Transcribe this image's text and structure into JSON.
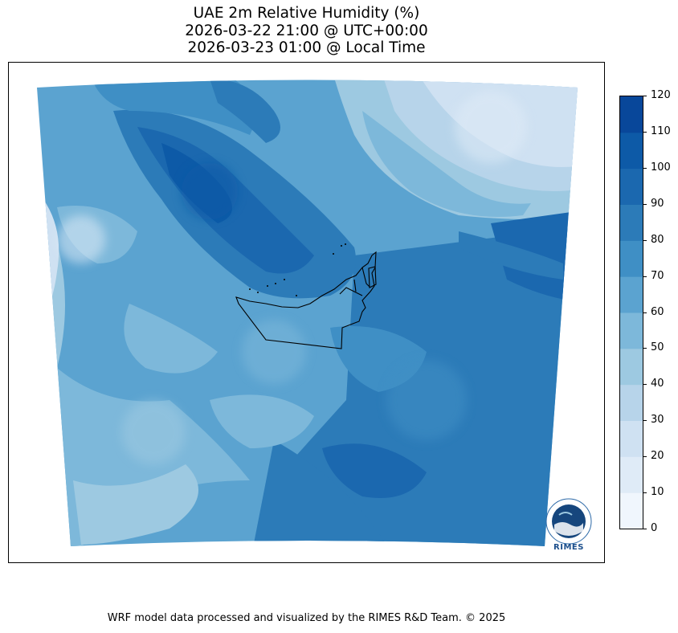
{
  "title": {
    "line1": "UAE 2m Relative Humidity (%)",
    "line2": "2026-03-22 21:00 @ UTC+00:00",
    "line3": "2026-03-23 01:00 @ Local Time"
  },
  "colorbar": {
    "ticks": [
      "0",
      "10",
      "20",
      "30",
      "40",
      "50",
      "60",
      "70",
      "80",
      "90",
      "100",
      "110",
      "120"
    ],
    "colors": [
      "#f0f6fd",
      "#dfebf7",
      "#cfe1f2",
      "#b7d4ea",
      "#9dc9e1",
      "#7db8da",
      "#5ba3d0",
      "#3f8fc5",
      "#2c7bb8",
      "#1b68af",
      "#0d5aa7",
      "#08479a",
      "#083372"
    ]
  },
  "logo": {
    "text": "RIMES"
  },
  "footer": {
    "text": "WRF model data processed and visualized by the RIMES R&D Team. © 2025"
  }
}
